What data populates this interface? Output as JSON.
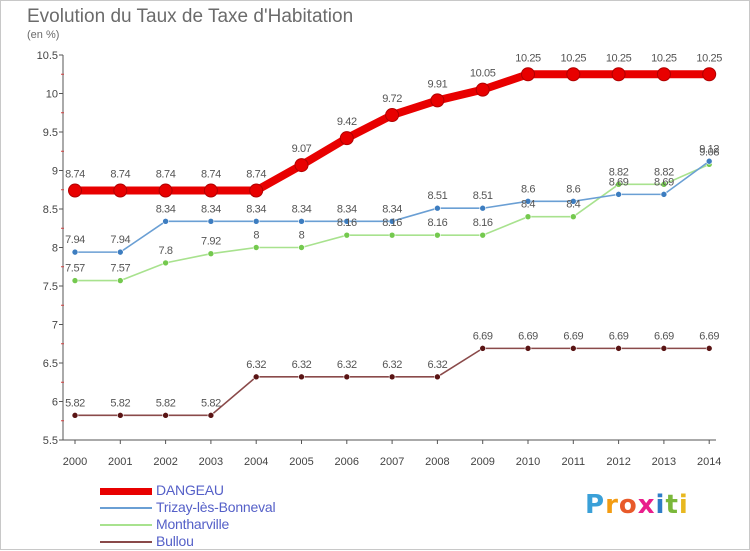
{
  "title": "Evolution du Taux de Taxe d'Habitation",
  "subtitle": "(en %)",
  "logo": {
    "text": "Proxiti",
    "letters": [
      {
        "ch": "P",
        "color": "#3aa0d8"
      },
      {
        "ch": "r",
        "color": "#f39c12"
      },
      {
        "ch": "o",
        "color": "#e85a2a"
      },
      {
        "ch": "x",
        "color": "#e91e8c"
      },
      {
        "ch": "i",
        "color": "#2e7dc7"
      },
      {
        "ch": "t",
        "color": "#7ab83a"
      },
      {
        "ch": "i",
        "color": "#e8b820"
      }
    ]
  },
  "chart_data": {
    "type": "line",
    "title": "Evolution du Taux de Taxe d'Habitation",
    "subtitle": "(en %)",
    "x": [
      "2000",
      "2001",
      "2002",
      "2003",
      "2004",
      "2005",
      "2006",
      "2007",
      "2008",
      "2009",
      "2010",
      "2011",
      "2012",
      "2013",
      "2014"
    ],
    "ylim": [
      5.5,
      10.5
    ],
    "yticks": [
      5.5,
      6,
      6.5,
      7,
      7.5,
      8,
      8.5,
      9,
      9.5,
      10,
      10.5
    ],
    "grid": false,
    "legend_position": "bottom-left",
    "series": [
      {
        "name": "DANGEAU",
        "color": "#e80000",
        "emphasis": true,
        "values": [
          8.74,
          8.74,
          8.74,
          8.74,
          8.74,
          9.07,
          9.42,
          9.72,
          9.91,
          10.05,
          10.25,
          10.25,
          10.25,
          10.25,
          10.25
        ]
      },
      {
        "name": "Trizay-lès-Bonneval",
        "color": "#6a9fd4",
        "marker": "#3d7dc0",
        "values": [
          7.94,
          7.94,
          8.34,
          8.34,
          8.34,
          8.34,
          8.34,
          8.34,
          8.51,
          8.51,
          8.6,
          8.6,
          8.69,
          8.69,
          9.12
        ]
      },
      {
        "name": "Montharville",
        "color": "#a8e28e",
        "marker": "#74c94e",
        "values": [
          7.57,
          7.57,
          7.8,
          7.92,
          8,
          8,
          8.16,
          8.16,
          8.16,
          8.16,
          8.4,
          8.4,
          8.82,
          8.82,
          9.08
        ]
      },
      {
        "name": "Bullou",
        "color": "#8a4a4a",
        "marker": "#5a1414",
        "values": [
          5.82,
          5.82,
          5.82,
          5.82,
          6.32,
          6.32,
          6.32,
          6.32,
          6.32,
          6.69,
          6.69,
          6.69,
          6.69,
          6.69,
          6.69
        ]
      }
    ]
  }
}
